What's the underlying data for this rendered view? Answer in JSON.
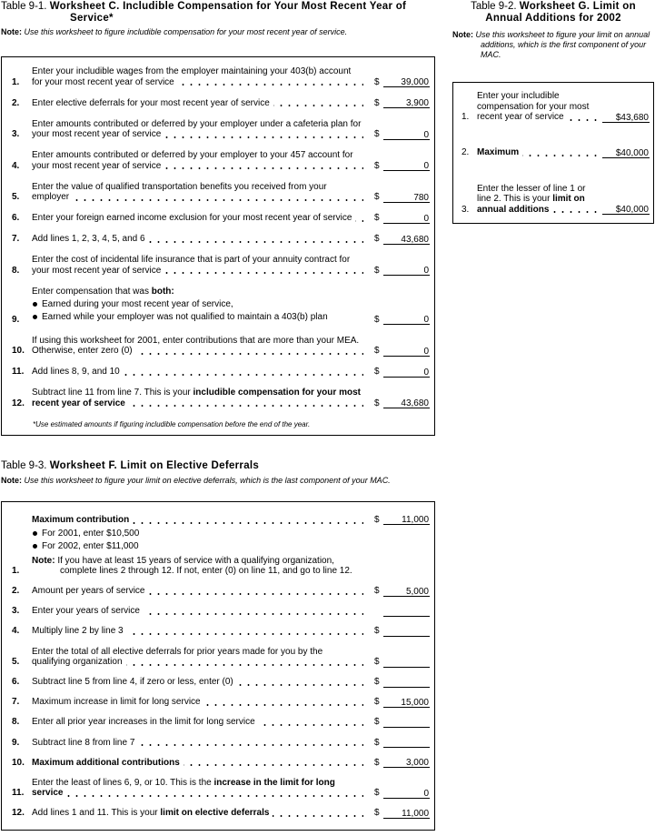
{
  "worksheet_c": {
    "caption": "Table 9-1.",
    "title": "Worksheet C. Includible Compensation for Your Most Recent Year of Service*",
    "note_label": "Note:",
    "note": "Use this worksheet to figure includible compensation for your most recent year of service.",
    "lines": [
      {
        "number": "1.",
        "text": [
          {
            "text": "Enter your includible wages from the employer maintaining your 403(b) account for your most recent year of service"
          }
        ],
        "dollar": "$",
        "amount": "39,000"
      },
      {
        "number": "2.",
        "text": [
          {
            "text": "Enter elective deferrals for your most recent year of service"
          }
        ],
        "dollar": "$",
        "amount": "3,900"
      },
      {
        "number": "3.",
        "text": [
          {
            "text": "Enter amounts contributed or deferred by your employer under a cafeteria plan for your most recent year of service"
          }
        ],
        "dollar": "$",
        "amount": "0"
      },
      {
        "number": "4.",
        "text": [
          {
            "text": "Enter amounts contributed or deferred by your employer to your 457 account for your most recent year of service"
          }
        ],
        "dollar": "$",
        "amount": "0"
      },
      {
        "number": "5.",
        "text": [
          {
            "text": "Enter the value of qualified transportation benefits you received from your employer"
          }
        ],
        "dollar": "$",
        "amount": "780"
      },
      {
        "number": "6.",
        "text": [
          {
            "text": "Enter your foreign earned income exclusion for your most recent year of service"
          }
        ],
        "dollar": "$",
        "amount": "0"
      },
      {
        "number": "7.",
        "text": [
          {
            "text": "Add lines 1, 2, 3, 4, 5, and 6"
          }
        ],
        "dollar": "$",
        "amount": "43,680"
      },
      {
        "number": "8.",
        "text": [
          {
            "text": "Enter the cost of incidental life insurance that is part of your annuity contract for your most recent year of service"
          }
        ],
        "dollar": "$",
        "amount": "0"
      },
      {
        "number": "9.",
        "text": [
          {
            "text": "Enter compensation that was "
          },
          {
            "text": "both:",
            "bold": true
          }
        ],
        "bullets": [
          "Earned during your most recent year of service,",
          "Earned while your employer was not qualified to maintain a 403(b) plan"
        ],
        "dollar": "$",
        "amount": "0"
      },
      {
        "number": "10.",
        "text": [
          {
            "text": "If using this worksheet for 2001, enter contributions that are more than your MEA. Otherwise, enter zero (0)"
          }
        ],
        "dollar": "$",
        "amount": "0"
      },
      {
        "number": "11.",
        "text": [
          {
            "text": "Add lines 8, 9, and 10"
          }
        ],
        "dollar": "$",
        "amount": "0"
      },
      {
        "number": "12.",
        "text": [
          {
            "text": "Subtract line 11 from line 7. This is your "
          },
          {
            "text": "includible compensation for your most recent year of service",
            "bold": true
          }
        ],
        "dollar": "$",
        "amount": "43,680"
      }
    ],
    "footnote": "*Use estimated amounts if figuring includible compensation before the end of the year."
  },
  "worksheet_g": {
    "caption": "Table 9-2.",
    "title": "Worksheet G. Limit on Annual Additions for 2002",
    "note_label": "Note:",
    "note": "Use this worksheet to figure your limit on annual additions, which is the first component of your MAC.",
    "lines": [
      {
        "number": "1.",
        "text": [
          {
            "text": "Enter your includible compensation for your most recent year of service"
          }
        ],
        "amount": "$43,680"
      },
      {
        "number": "2.",
        "text": [
          {
            "text": "Maximum",
            "bold": true
          }
        ],
        "amount": "$40,000"
      },
      {
        "number": "3.",
        "text": [
          {
            "text": "Enter the lesser of line 1 or line 2. This is your "
          },
          {
            "text": "limit on annual additions",
            "bold": true
          }
        ],
        "amount": "$40,000"
      }
    ]
  },
  "worksheet_f": {
    "caption": "Table 9-3.",
    "title": "Worksheet F. Limit on Elective Deferrals",
    "note_label": "Note:",
    "note": "Use this worksheet to figure your limit on elective deferrals, which is the last component of your MAC.",
    "lines": [
      {
        "number": "1.",
        "text": [
          {
            "text": "Maximum contribution",
            "bold": true
          }
        ],
        "bullets": [
          "For 2001, enter $10,500",
          "For 2002, enter $11,000"
        ],
        "note": {
          "label": "Note:",
          "text": "If you have at least 15 years of service with a qualifying organization, complete lines 2 through 12. If not, enter (0) on line 11, and go to line 12."
        },
        "dollar": "$",
        "amount": "11,000"
      },
      {
        "number": "2.",
        "text": [
          {
            "text": "Amount per years of service"
          }
        ],
        "dollar": "$",
        "amount": "5,000"
      },
      {
        "number": "3.",
        "text": [
          {
            "text": "Enter your years of service"
          }
        ]
      },
      {
        "number": "4.",
        "text": [
          {
            "text": "Multiply line 2 by line 3"
          }
        ],
        "dollar": "$"
      },
      {
        "number": "5.",
        "text": [
          {
            "text": "Enter the total of all elective deferrals for prior years made for you by the qualifying organization"
          }
        ],
        "dollar": "$"
      },
      {
        "number": "6.",
        "text": [
          {
            "text": "Subtract line 5 from line 4, if zero or less, enter (0)"
          }
        ],
        "dollar": "$"
      },
      {
        "number": "7.",
        "text": [
          {
            "text": "Maximum increase in limit for long service"
          }
        ],
        "dollar": "$",
        "amount": "15,000"
      },
      {
        "number": "8.",
        "text": [
          {
            "text": "Enter all prior year increases in the limit for long service"
          }
        ],
        "dollar": "$"
      },
      {
        "number": "9.",
        "text": [
          {
            "text": "Subtract line 8 from line 7"
          }
        ],
        "dollar": "$"
      },
      {
        "number": "10.",
        "text": [
          {
            "text": "Maximum additional contributions",
            "bold": true
          }
        ],
        "dollar": "$",
        "amount": "3,000"
      },
      {
        "number": "11.",
        "text": [
          {
            "text": "Enter the least of lines 6, 9, or 10. This is the "
          },
          {
            "text": "increase in the limit for long service",
            "bold": true
          }
        ],
        "dollar": "$",
        "amount": "0"
      },
      {
        "number": "12.",
        "text": [
          {
            "text": "Add lines 1 and 11. This is your "
          },
          {
            "text": "limit on elective deferrals",
            "bold": true
          }
        ],
        "dollar": "$",
        "amount": "11,000"
      }
    ]
  }
}
